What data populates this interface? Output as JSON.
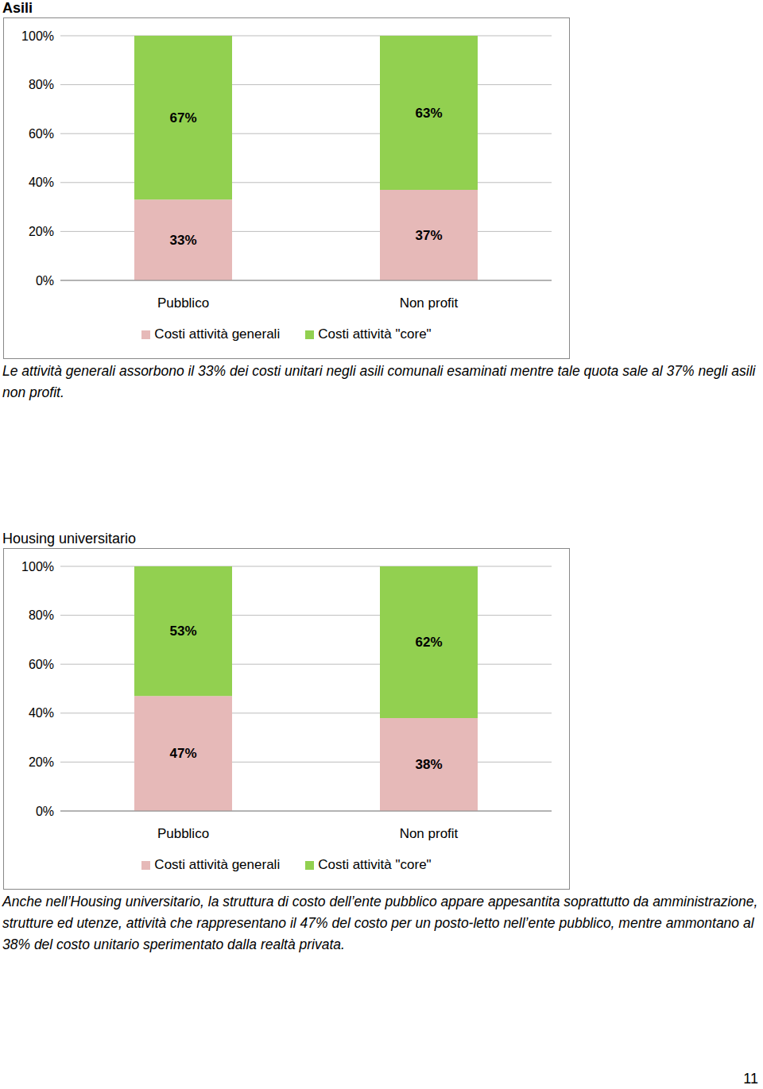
{
  "page_number": 11,
  "chart_data": [
    {
      "type": "bar",
      "title": "Asili",
      "categories": [
        "Pubblico",
        "Non profit"
      ],
      "series": [
        {
          "name": "Costi attività generali",
          "color": "#e6b9b8",
          "values": [
            33,
            37
          ],
          "value_labels": [
            "33%",
            "37%"
          ]
        },
        {
          "name": "Costi attività \"core\"",
          "color": "#92d050",
          "values": [
            67,
            63
          ],
          "value_labels": [
            "67%",
            "63%"
          ]
        }
      ],
      "stacked": true,
      "data_labels": true,
      "grid": true,
      "legend": "bottom",
      "ylim": [
        0,
        100
      ],
      "yticks": [
        {
          "value": 0,
          "label": "0%"
        },
        {
          "value": 20,
          "label": "20%"
        },
        {
          "value": 40,
          "label": "40%"
        },
        {
          "value": 60,
          "label": "60%"
        },
        {
          "value": 80,
          "label": "80%"
        },
        {
          "value": 100,
          "label": "100%"
        }
      ],
      "annotations": [
        "Le attività generali assorbono il 33% dei costi unitari negli asili comunali esaminati mentre tale quota sale al 37% negli asili non profit."
      ]
    },
    {
      "type": "bar",
      "title": "Housing universitario",
      "categories": [
        "Pubblico",
        "Non profit"
      ],
      "series": [
        {
          "name": "Costi attività generali",
          "color": "#e6b9b8",
          "values": [
            47,
            38
          ],
          "value_labels": [
            "47%",
            "38%"
          ]
        },
        {
          "name": "Costi attività \"core\"",
          "color": "#92d050",
          "values": [
            53,
            62
          ],
          "value_labels": [
            "53%",
            "62%"
          ]
        }
      ],
      "stacked": true,
      "data_labels": true,
      "grid": true,
      "legend": "bottom",
      "ylim": [
        0,
        100
      ],
      "yticks": [
        {
          "value": 0,
          "label": "0%"
        },
        {
          "value": 20,
          "label": "20%"
        },
        {
          "value": 40,
          "label": "40%"
        },
        {
          "value": 60,
          "label": "60%"
        },
        {
          "value": 80,
          "label": "80%"
        },
        {
          "value": 100,
          "label": "100%"
        }
      ],
      "annotations": [
        "Anche nell’Housing universitario, la struttura di costo dell’ente pubblico appare appesantita soprattutto da amministrazione, strutture ed utenze, attività che rappresentano il 47% del costo per un posto-letto nell’ente pubblico, mentre ammontano al 38% del costo unitario sperimentato dalla realtà privata."
      ]
    }
  ]
}
